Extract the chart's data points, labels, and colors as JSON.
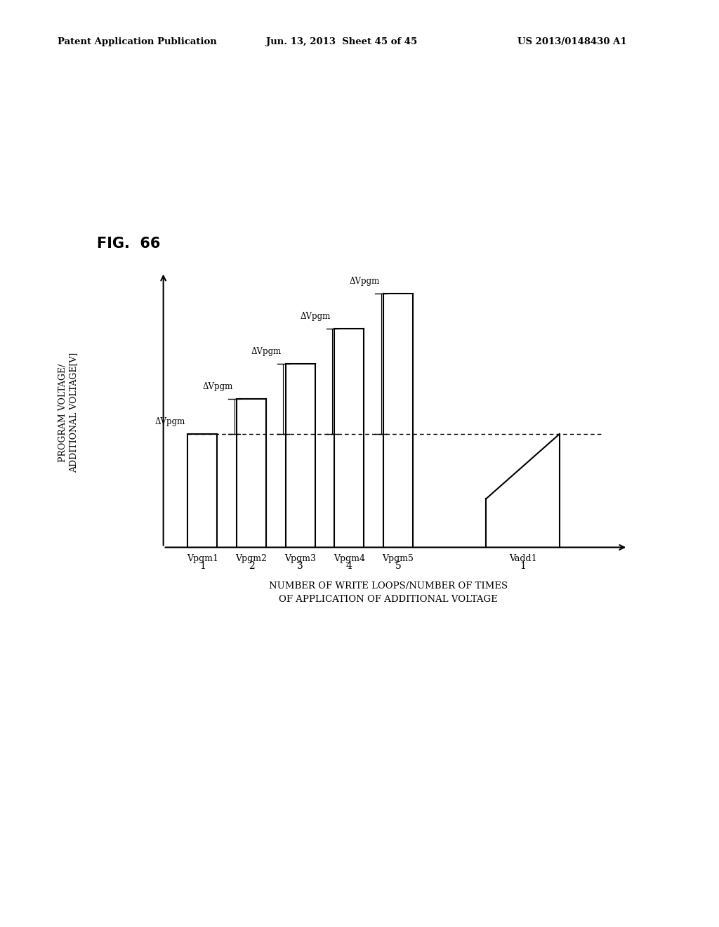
{
  "fig_label": "FIG.  66",
  "header_left": "Patent Application Publication",
  "header_center": "Jun. 13, 2013  Sheet 45 of 45",
  "header_right": "US 2013/0148430 A1",
  "ylabel": "PROGRAM VOLTAGE/\nADDITIONAL VOLTAGE[V]",
  "xlabel_line1": "NUMBER OF WRITE LOOPS/NUMBER OF TIMES",
  "xlabel_line2": "OF APPLICATION OF ADDITIONAL VOLTAGE",
  "x_ticks": [
    "1",
    "2",
    "3",
    "4",
    "5",
    "1"
  ],
  "bar_labels": [
    "Vpgm1",
    "Vpgm2",
    "Vpgm3",
    "Vpgm4",
    "Vpgm5",
    "Vadd1"
  ],
  "delta_label": "ΔVpgm",
  "background_color": "#ffffff",
  "bar_color": "#000000",
  "font_color": "#000000"
}
